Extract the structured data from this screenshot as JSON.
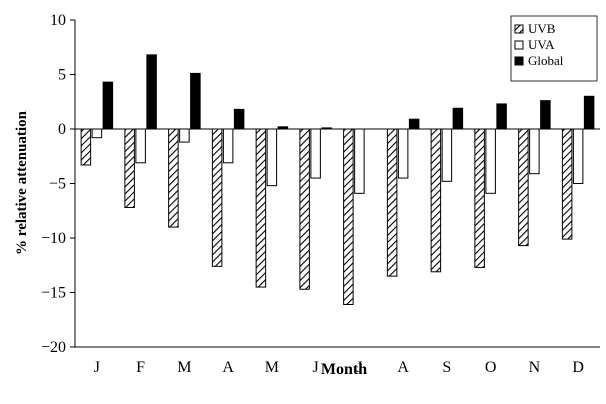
{
  "chart_data": {
    "type": "bar",
    "categories": [
      "J",
      "F",
      "M",
      "A",
      "M",
      "J",
      "J",
      "A",
      "S",
      "O",
      "N",
      "D"
    ],
    "series": [
      {
        "name": "UVB",
        "values": [
          -3.3,
          -7.2,
          -9.0,
          -12.6,
          -14.5,
          -14.7,
          -16.1,
          -13.5,
          -13.1,
          -12.7,
          -10.7,
          -10.1
        ],
        "pattern": "hatch"
      },
      {
        "name": "UVA",
        "values": [
          -0.8,
          -3.1,
          -1.2,
          -3.1,
          -5.2,
          -4.5,
          -5.9,
          -4.5,
          -4.8,
          -5.9,
          -4.1,
          -5.0
        ],
        "pattern": "white"
      },
      {
        "name": "Global",
        "values": [
          4.3,
          6.8,
          5.1,
          1.8,
          0.2,
          0.1,
          0.0,
          0.9,
          1.9,
          2.3,
          2.6,
          3.0
        ],
        "pattern": "black"
      }
    ],
    "ylim": [
      -20,
      10
    ],
    "yticks": [
      10,
      5,
      0,
      -5,
      -10,
      -15,
      -20
    ],
    "ytick_labels": [
      "10",
      "5",
      "0",
      "−5",
      "−10",
      "−15",
      "−20"
    ],
    "xlabel": "Month",
    "ylabel": "% relative attenuation",
    "legend_position": "top-right",
    "grid": false,
    "colors": {
      "axis": "#000000",
      "bar_edge": "#000000",
      "global_fill": "#000000",
      "uva_fill": "#ffffff"
    }
  }
}
